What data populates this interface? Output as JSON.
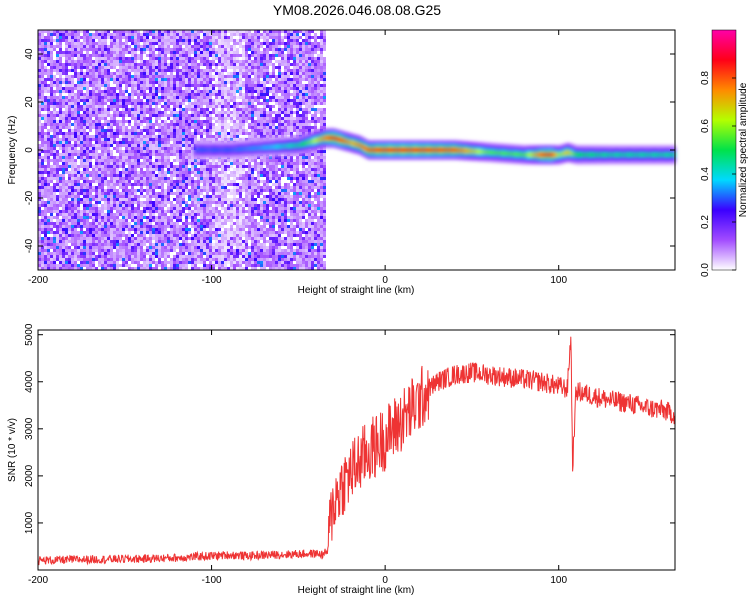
{
  "title": "YM08.2026.046.08.08.G25",
  "chart_data": [
    {
      "type": "heatmap",
      "xlabel": "Height of straight line (km)",
      "ylabel": "Frequency (Hz)",
      "xlim": [
        -200,
        167
      ],
      "ylim": [
        -50,
        50
      ],
      "xticks": [
        -200,
        -100,
        0,
        100
      ],
      "yticks": [
        -40,
        -20,
        0,
        20,
        40
      ],
      "grid": false,
      "colorbar": {
        "label": "Normalized spectral amplitude",
        "range": [
          0.0,
          1.0
        ],
        "ticks": [
          "0.0",
          "0.2",
          "0.4",
          "0.6",
          "0.8"
        ],
        "colors": [
          "#ffffff",
          "#a24cff",
          "#3b00ff",
          "#00d9ff",
          "#00e24a",
          "#b4ff00",
          "#ff8a00",
          "#ff0018",
          "#ff00a8"
        ]
      },
      "noise_region_x": [
        -200,
        -35
      ],
      "ridge": {
        "x": [
          -110,
          -90,
          -70,
          -50,
          -35,
          -30,
          -25,
          -20,
          -15,
          -10,
          0,
          20,
          40,
          60,
          80,
          90,
          95,
          100,
          105,
          110,
          130,
          150,
          167
        ],
        "y": [
          0,
          0,
          1,
          2,
          5,
          5,
          4,
          3,
          2,
          0,
          0,
          0,
          0,
          -1,
          -2,
          -2,
          -2,
          -2,
          -1,
          -2,
          -2,
          -2,
          -2
        ],
        "amplitude": [
          0.3,
          0.3,
          0.35,
          0.45,
          0.75,
          0.85,
          0.8,
          0.7,
          0.75,
          0.8,
          0.85,
          0.85,
          0.8,
          0.55,
          0.55,
          0.8,
          0.85,
          0.6,
          0.7,
          0.5,
          0.45,
          0.45,
          0.45
        ]
      }
    },
    {
      "type": "line",
      "xlabel": "Height of straight line (km)",
      "ylabel": "SNR (10 * v/v)",
      "xlim": [
        -200,
        167
      ],
      "ylim": [
        0,
        5100
      ],
      "xticks": [
        -200,
        -100,
        0,
        100
      ],
      "yticks": [
        1000,
        2000,
        3000,
        4000,
        5000
      ],
      "grid": false,
      "series": [
        {
          "color": "#ee3333",
          "x": [
            -200,
            -180,
            -160,
            -140,
            -120,
            -110,
            -100,
            -90,
            -80,
            -60,
            -40,
            -36,
            -33,
            -32,
            -30,
            -25,
            -20,
            -15,
            -10,
            -5,
            0,
            5,
            10,
            15,
            20,
            25,
            30,
            40,
            50,
            60,
            70,
            80,
            90,
            100,
            105,
            107,
            108,
            110,
            120,
            130,
            140,
            150,
            160,
            167
          ],
          "y": [
            200,
            220,
            230,
            240,
            260,
            280,
            300,
            320,
            300,
            330,
            350,
            330,
            400,
            900,
            1400,
            1800,
            2050,
            2300,
            2500,
            2650,
            2800,
            3000,
            3200,
            3400,
            3600,
            3850,
            4000,
            4150,
            4200,
            4150,
            4100,
            4050,
            4000,
            3900,
            3850,
            5000,
            2200,
            3800,
            3700,
            3600,
            3550,
            3450,
            3400,
            3300
          ]
        }
      ]
    }
  ]
}
